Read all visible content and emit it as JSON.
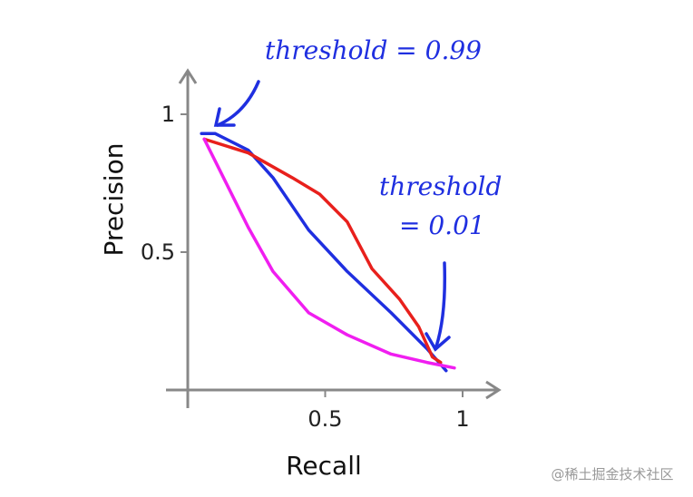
{
  "chart_data": {
    "type": "line",
    "xlabel": "Recall",
    "ylabel": "Precision",
    "annotations": [
      "threshold = 0.99",
      "threshold",
      "= 0.01"
    ],
    "xlim": [
      0,
      1.1
    ],
    "ylim": [
      0,
      1.1
    ],
    "xticks": [
      0.5,
      1
    ],
    "yticks": [
      0.5,
      1
    ],
    "series": [
      {
        "color": "#1f2fe0",
        "x": [
          0.05,
          0.1,
          0.22,
          0.31,
          0.44,
          0.58,
          0.74,
          0.87,
          0.94
        ],
        "values": [
          0.93,
          0.93,
          0.87,
          0.77,
          0.58,
          0.43,
          0.28,
          0.15,
          0.07
        ]
      },
      {
        "color": "#e8201c",
        "x": [
          0.06,
          0.22,
          0.38,
          0.48,
          0.58,
          0.67,
          0.77,
          0.84,
          0.89,
          0.92
        ],
        "values": [
          0.91,
          0.86,
          0.77,
          0.71,
          0.61,
          0.44,
          0.33,
          0.23,
          0.12,
          0.1
        ]
      },
      {
        "color": "#f01ef0",
        "x": [
          0.06,
          0.12,
          0.22,
          0.31,
          0.44,
          0.58,
          0.74,
          0.87,
          0.97
        ],
        "values": [
          0.91,
          0.79,
          0.59,
          0.43,
          0.28,
          0.2,
          0.13,
          0.1,
          0.08
        ]
      }
    ]
  },
  "watermark": "@稀土掘金技术社区"
}
